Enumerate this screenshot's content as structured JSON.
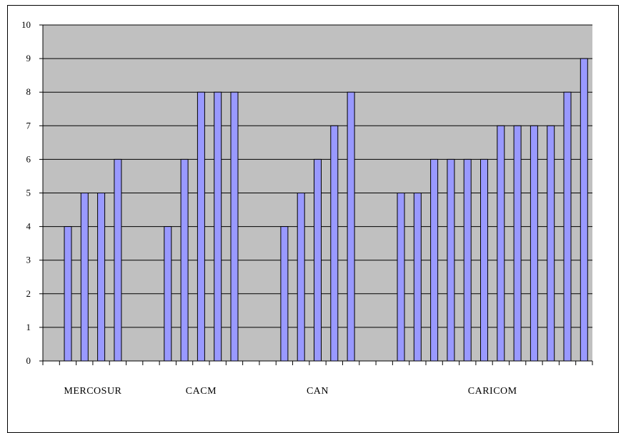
{
  "chart_data": {
    "type": "bar",
    "title": "",
    "xlabel": "",
    "ylabel": "",
    "ylim": [
      0,
      10
    ],
    "yticks": [
      0,
      1,
      2,
      3,
      4,
      5,
      6,
      7,
      8,
      9,
      10
    ],
    "grid": true,
    "legend": "none",
    "colors": {
      "bar_fill": "#9999ff",
      "bar_stroke": "#000000",
      "plot_bg": "#c0c0c0",
      "gridline": "#000000"
    },
    "slots": 33,
    "groups": [
      {
        "label": "MERCOSUR",
        "start_slot": 1,
        "values": [
          4,
          5,
          5,
          6
        ]
      },
      {
        "label": "CACM",
        "start_slot": 7,
        "values": [
          4,
          6,
          8,
          8,
          8
        ]
      },
      {
        "label": "CAN",
        "start_slot": 14,
        "values": [
          4,
          5,
          6,
          7,
          8
        ]
      },
      {
        "label": "CARICOM",
        "start_slot": 21,
        "values": [
          5,
          5,
          6,
          6,
          6,
          6,
          7,
          7,
          7,
          7,
          8,
          9
        ]
      }
    ]
  }
}
